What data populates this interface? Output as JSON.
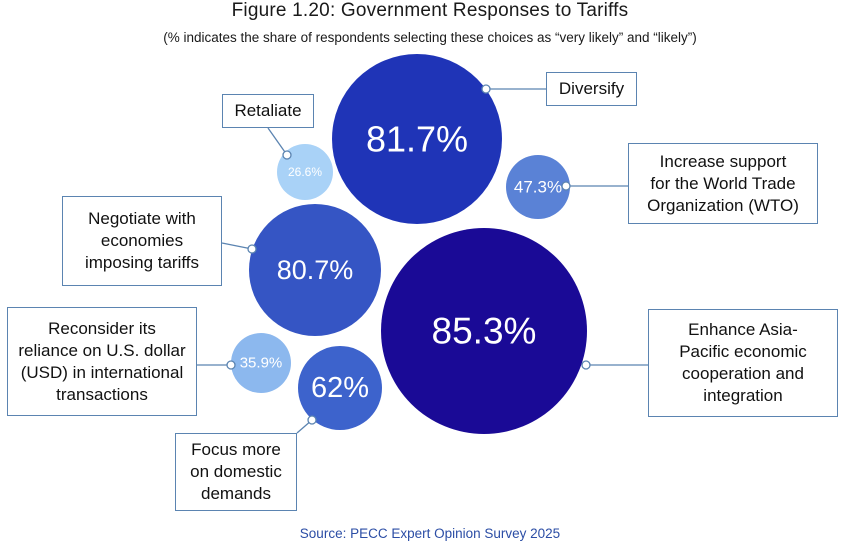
{
  "title": "Figure 1.20: Government Responses to Tariffs",
  "subtitle": "(% indicates the share of respondents selecting these choices as “very likely” and “likely”)",
  "source": "Source: PECC Expert Opinion Survey 2025",
  "colors": {
    "darkest": "#1a0a96",
    "dark": "#1f34b7",
    "medium": "#3555c4",
    "mid_light": "#5a82d6",
    "light": "#8cb8ee",
    "lightest": "#a9d2f7",
    "connector": "#5b84b1"
  },
  "chart_data": {
    "type": "bubble",
    "title": "Figure 1.20: Government Responses to Tariffs",
    "unit": "%",
    "items": [
      {
        "id": "diversify",
        "label": "Diversify",
        "value": 81.7,
        "display": "81.7%",
        "color": "#1f34b7"
      },
      {
        "id": "retaliate",
        "label": "Retaliate",
        "value": 26.6,
        "display": "26.6%",
        "color": "#a9d2f7"
      },
      {
        "id": "wto",
        "label": "Increase support\nfor the World Trade\nOrganization (WTO)",
        "value": 47.3,
        "display": "47.3%",
        "color": "#5a82d6"
      },
      {
        "id": "negotiate",
        "label": "Negotiate with\neconomies\nimposing tariffs",
        "value": 80.7,
        "display": "80.7%",
        "color": "#3555c4"
      },
      {
        "id": "asia-pacific",
        "label": "Enhance Asia-\nPacific economic\ncooperation and\nintegration",
        "value": 85.3,
        "display": "85.3%",
        "color": "#1a0a96"
      },
      {
        "id": "usd",
        "label": "Reconsider its\nreliance on U.S. dollar\n(USD) in international\ntransactions",
        "value": 35.9,
        "display": "35.9%",
        "color": "#8cb8ee"
      },
      {
        "id": "domestic",
        "label": "Focus more\non domestic\ndemands",
        "value": 62,
        "display": "62%",
        "color": "#3d63cc"
      }
    ]
  }
}
